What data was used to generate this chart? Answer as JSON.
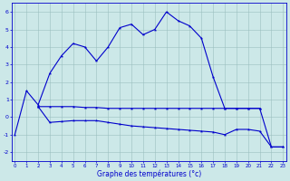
{
  "title": "Graphe des températures (°c)",
  "background_color": "#cce8e8",
  "line_color": "#0000cc",
  "x_ticks": [
    0,
    1,
    2,
    3,
    4,
    5,
    6,
    7,
    8,
    9,
    10,
    11,
    12,
    13,
    14,
    15,
    16,
    17,
    18,
    19,
    20,
    21,
    22,
    23
  ],
  "ylim": [
    -2.5,
    6.5
  ],
  "xlim": [
    -0.3,
    23.3
  ],
  "yticks": [
    -2,
    -1,
    0,
    1,
    2,
    3,
    4,
    5,
    6
  ],
  "line1_x": [
    0,
    1,
    2,
    3,
    4,
    5,
    6,
    7,
    8,
    9,
    10,
    11,
    12,
    13,
    14,
    15,
    16,
    17,
    18,
    19,
    20,
    21,
    22,
    23
  ],
  "line1_y": [
    -1.0,
    1.5,
    0.7,
    2.5,
    3.5,
    4.2,
    4.0,
    3.2,
    4.0,
    5.1,
    5.3,
    4.7,
    5.0,
    6.0,
    5.5,
    5.2,
    4.5,
    2.3,
    0.5,
    0.5,
    0.5,
    0.5,
    -1.7,
    -1.7
  ],
  "line2_x": [
    2,
    3,
    4,
    5,
    6,
    7,
    8,
    9,
    10,
    11,
    12,
    13,
    14,
    15,
    16,
    17,
    18,
    19,
    20,
    21
  ],
  "line2_y": [
    0.6,
    0.6,
    0.6,
    0.6,
    0.55,
    0.55,
    0.5,
    0.5,
    0.5,
    0.5,
    0.5,
    0.5,
    0.5,
    0.5,
    0.5,
    0.5,
    0.5,
    0.5,
    0.5,
    0.5
  ],
  "line3_x": [
    2,
    3,
    4,
    5,
    6,
    7,
    8,
    9,
    10,
    11,
    12,
    13,
    14,
    15,
    16,
    17,
    18,
    19,
    20,
    21,
    22,
    23
  ],
  "line3_y": [
    0.6,
    -0.3,
    -0.25,
    -0.2,
    -0.2,
    -0.2,
    -0.3,
    -0.4,
    -0.5,
    -0.55,
    -0.6,
    -0.65,
    -0.7,
    -0.75,
    -0.8,
    -0.85,
    -1.0,
    -0.7,
    -0.7,
    -0.8,
    -1.7,
    -1.7
  ]
}
